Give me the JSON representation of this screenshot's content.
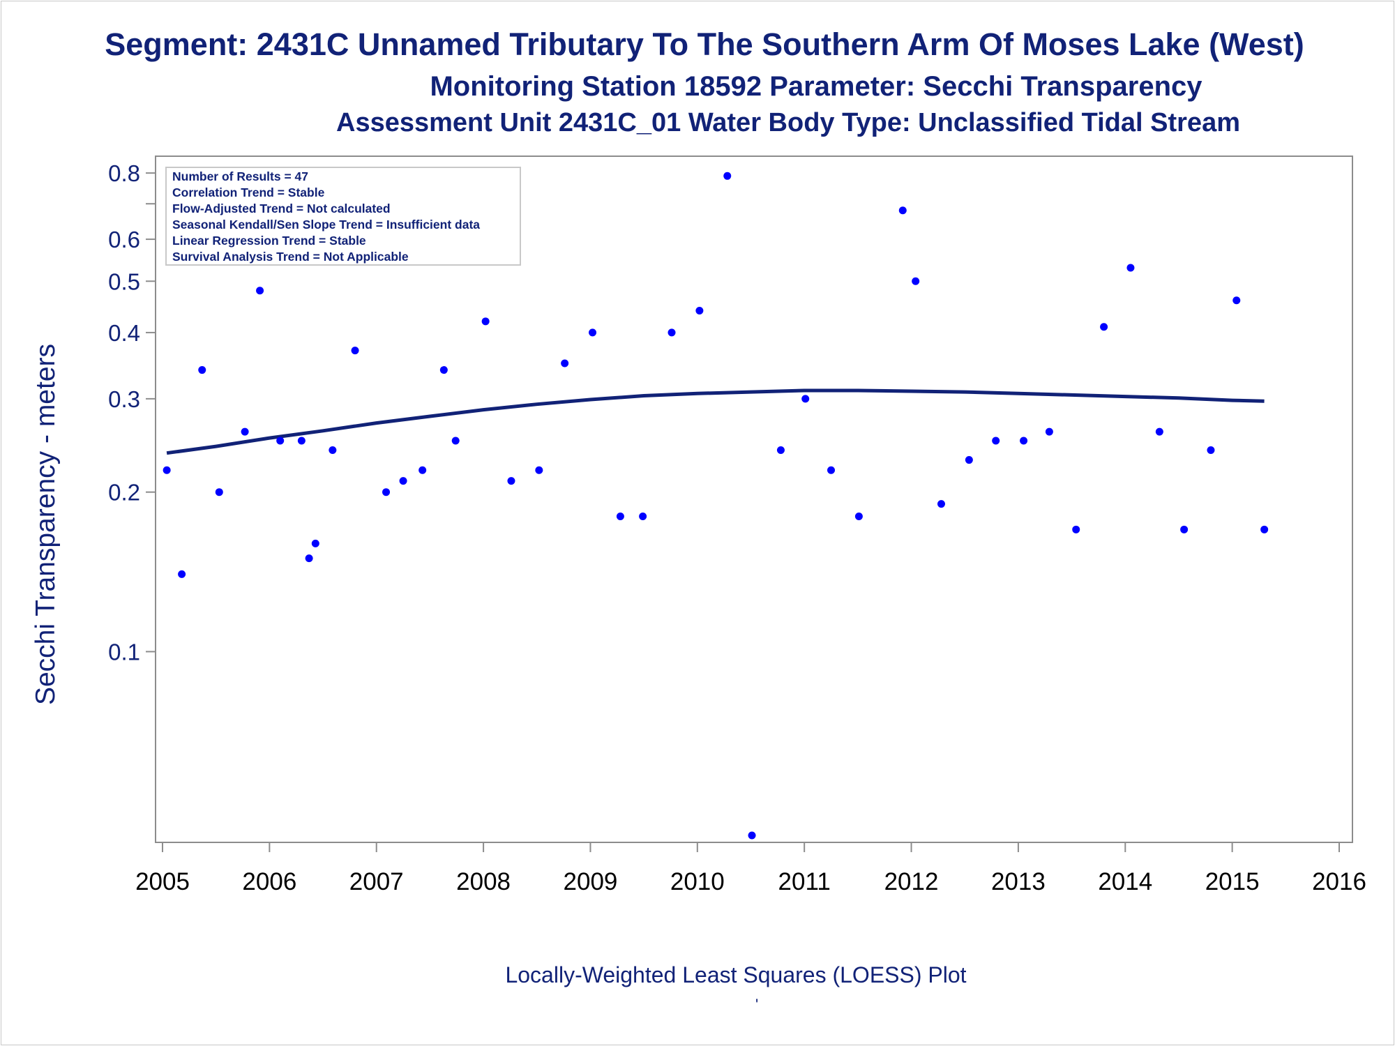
{
  "titles": {
    "line1": "Segment: 2431C  Unnamed Tributary To The Southern Arm Of Moses Lake (West)",
    "line2": "Monitoring Station 18592 Parameter: Secchi Transparency",
    "line3": "Assessment Unit 2431C_01    Water Body Type: Unclassified Tidal Stream"
  },
  "footer": {
    "caption": "Locally-Weighted Least Squares (LOESS) Plot",
    "mark": "'"
  },
  "chart_data": {
    "type": "scatter",
    "title": "",
    "xlabel": "",
    "ylabel": "Secchi Transparency - meters",
    "yscale": "log",
    "xlim": [
      2005,
      2016
    ],
    "ylim": [
      0.045,
      0.82
    ],
    "x_ticks": [
      2005,
      2006,
      2007,
      2008,
      2009,
      2010,
      2011,
      2012,
      2013,
      2014,
      2015,
      2016
    ],
    "y_ticks": [
      {
        "value": 0.8,
        "label": "0.8"
      },
      {
        "value": 0.7,
        "label": ""
      },
      {
        "value": 0.6,
        "label": "0.6"
      },
      {
        "value": 0.5,
        "label": "0.5"
      },
      {
        "value": 0.4,
        "label": "0.4"
      },
      {
        "value": 0.3,
        "label": "0.3"
      },
      {
        "value": 0.2,
        "label": "0.2"
      },
      {
        "value": 0.1,
        "label": "0.1"
      }
    ],
    "point_color": "#0000ff",
    "line_color": "#112277",
    "legend_box": {
      "placement": "top-left",
      "lines": [
        "Number of Results = 47",
        "Correlation Trend = Stable",
        "Flow-Adjusted Trend = Not calculated",
        "Seasonal Kendall/Sen Slope Trend = Insufficient data",
        "Linear Regression Trend = Stable",
        "Survival Analysis Trend = Not Applicable"
      ]
    },
    "points": [
      [
        2005.04,
        0.22
      ],
      [
        2005.18,
        0.14
      ],
      [
        2005.37,
        0.34
      ],
      [
        2005.53,
        0.2
      ],
      [
        2005.77,
        0.26
      ],
      [
        2005.91,
        0.48
      ],
      [
        2006.1,
        0.25
      ],
      [
        2006.3,
        0.25
      ],
      [
        2006.37,
        0.15
      ],
      [
        2006.43,
        0.16
      ],
      [
        2006.59,
        0.24
      ],
      [
        2006.8,
        0.37
      ],
      [
        2007.09,
        0.2
      ],
      [
        2007.25,
        0.21
      ],
      [
        2007.43,
        0.22
      ],
      [
        2007.63,
        0.34
      ],
      [
        2007.74,
        0.25
      ],
      [
        2008.02,
        0.42
      ],
      [
        2008.26,
        0.21
      ],
      [
        2008.52,
        0.22
      ],
      [
        2008.76,
        0.35
      ],
      [
        2009.02,
        0.4
      ],
      [
        2009.28,
        0.18
      ],
      [
        2009.49,
        0.18
      ],
      [
        2009.76,
        0.4
      ],
      [
        2010.02,
        0.44
      ],
      [
        2010.28,
        0.79
      ],
      [
        2010.51,
        0.045
      ],
      [
        2010.78,
        0.24
      ],
      [
        2011.01,
        0.3
      ],
      [
        2011.25,
        0.22
      ],
      [
        2011.51,
        0.18
      ],
      [
        2011.92,
        0.68
      ],
      [
        2012.04,
        0.5
      ],
      [
        2012.28,
        0.19
      ],
      [
        2012.54,
        0.23
      ],
      [
        2012.79,
        0.25
      ],
      [
        2013.05,
        0.25
      ],
      [
        2013.29,
        0.26
      ],
      [
        2013.54,
        0.17
      ],
      [
        2013.8,
        0.41
      ],
      [
        2014.05,
        0.53
      ],
      [
        2014.32,
        0.26
      ],
      [
        2014.55,
        0.17
      ],
      [
        2014.8,
        0.24
      ],
      [
        2015.04,
        0.46
      ],
      [
        2015.3,
        0.17
      ]
    ],
    "loess": [
      [
        2005.04,
        0.237
      ],
      [
        2005.5,
        0.244
      ],
      [
        2006.0,
        0.253
      ],
      [
        2006.5,
        0.261
      ],
      [
        2007.0,
        0.27
      ],
      [
        2007.5,
        0.278
      ],
      [
        2008.0,
        0.286
      ],
      [
        2008.5,
        0.293
      ],
      [
        2009.0,
        0.299
      ],
      [
        2009.5,
        0.304
      ],
      [
        2010.0,
        0.307
      ],
      [
        2010.5,
        0.309
      ],
      [
        2011.0,
        0.311
      ],
      [
        2011.5,
        0.311
      ],
      [
        2012.0,
        0.31
      ],
      [
        2012.5,
        0.309
      ],
      [
        2013.0,
        0.307
      ],
      [
        2013.5,
        0.305
      ],
      [
        2014.0,
        0.303
      ],
      [
        2014.5,
        0.301
      ],
      [
        2015.0,
        0.298
      ],
      [
        2015.3,
        0.297
      ]
    ]
  }
}
